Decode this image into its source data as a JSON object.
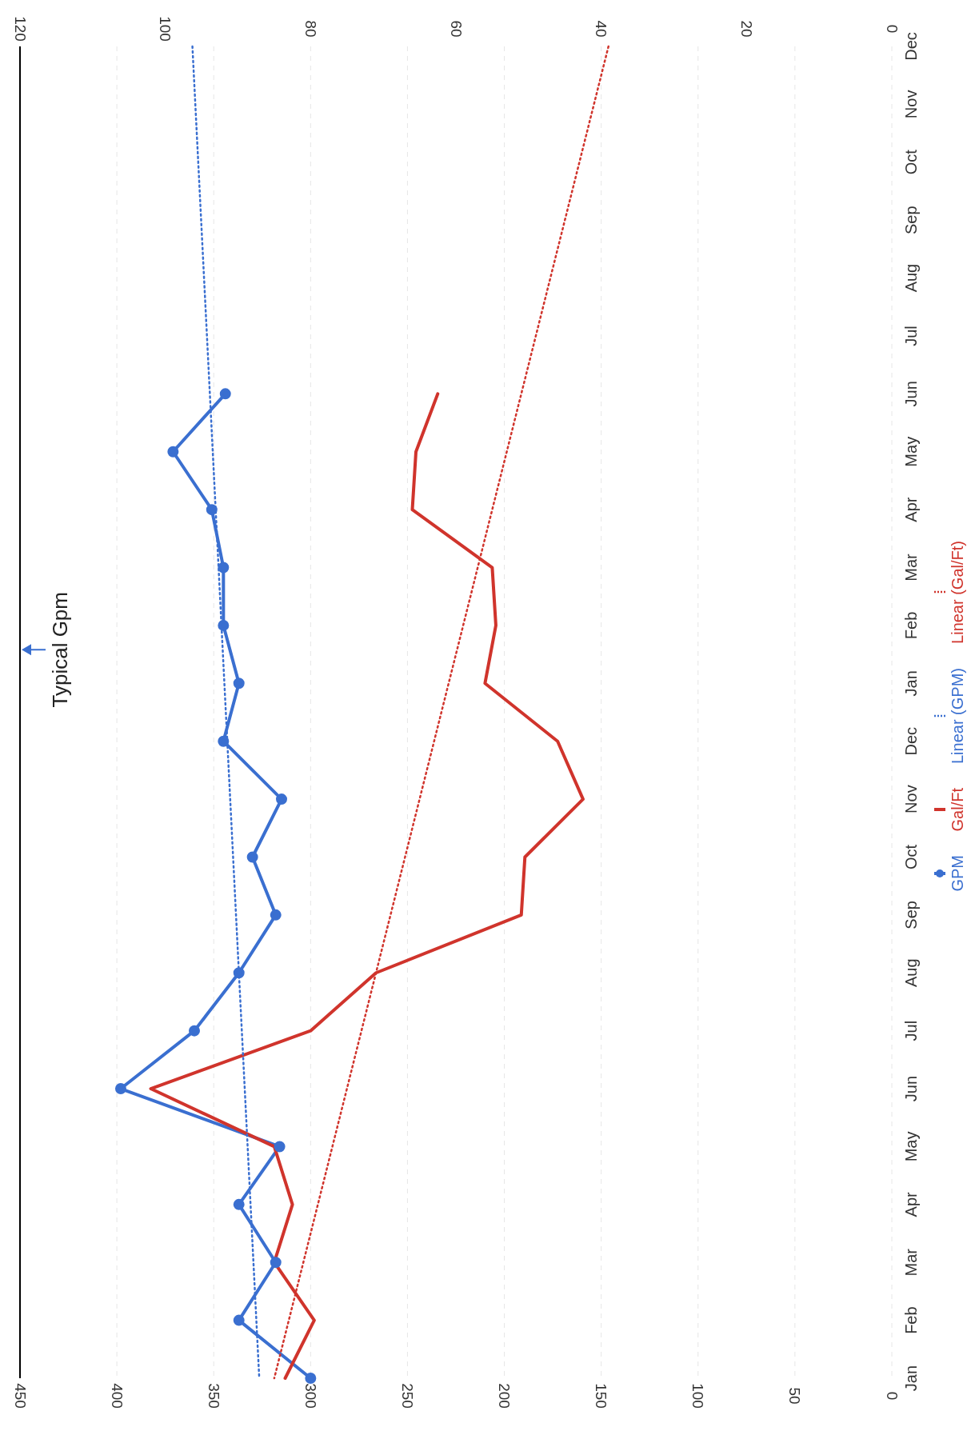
{
  "chart_data": {
    "type": "line",
    "orientation": "horizontal",
    "categories": [
      "Dec",
      "Nov",
      "Oct",
      "Sep",
      "Aug",
      "Jul",
      "Jun",
      "May",
      "Apr",
      "Mar",
      "Feb",
      "Jan",
      "Dec",
      "Nov",
      "Oct",
      "Sep",
      "Aug",
      "Jul",
      "Jun",
      "May",
      "Apr",
      "Mar",
      "Feb",
      "Jan"
    ],
    "series": [
      {
        "name": "GPM",
        "color": "#3a6fd0",
        "marker": "circle",
        "line_style": "solid",
        "values": [
          null,
          null,
          null,
          null,
          null,
          null,
          344,
          371,
          351,
          345,
          345,
          337,
          345,
          315,
          330,
          318,
          337,
          360,
          398,
          316,
          337,
          318,
          337,
          300
        ]
      },
      {
        "name": "Gal/Ft",
        "color": "#d0342c",
        "axis": "x2",
        "marker": "none",
        "line_style": "solid",
        "values": [
          null,
          null,
          null,
          null,
          null,
          null,
          62.5,
          65.5,
          66,
          55,
          54.5,
          56,
          46,
          42.5,
          50.5,
          51,
          71,
          80,
          102,
          85,
          82.5,
          85,
          79.5,
          83.5
        ]
      },
      {
        "name": "Linear (GPM)",
        "color": "#3a6fd0",
        "marker": "none",
        "line_style": "dotted",
        "values": [
          361,
          359.5,
          358,
          356.5,
          355,
          353.5,
          352,
          350.5,
          349,
          347.5,
          346,
          344.5,
          343,
          341.5,
          340,
          338.5,
          337,
          335.5,
          334,
          332.5,
          331,
          329.5,
          328,
          326.5
        ]
      },
      {
        "name": "Linear (Gal/Ft)",
        "color": "#d0342c",
        "axis": "x2",
        "marker": "none",
        "line_style": "dotted",
        "values": [
          39,
          41,
          43,
          45,
          47,
          49,
          51,
          53,
          55,
          57,
          59,
          61,
          63,
          65,
          67,
          69,
          71,
          73,
          75,
          77,
          79,
          81,
          83,
          85
        ]
      }
    ],
    "xlim": [
      450,
      0
    ],
    "xticks": [
      0,
      50,
      100,
      150,
      200,
      250,
      300,
      350,
      400,
      450
    ],
    "x2lim": [
      120,
      0
    ],
    "x2ticks": [
      0,
      20,
      40,
      60,
      80,
      100,
      120
    ],
    "ref_lines": [
      {
        "axis": "x",
        "value": 450,
        "label": "Typical Gpm",
        "color": "#000000"
      }
    ],
    "grid": "x",
    "legend": "right"
  }
}
